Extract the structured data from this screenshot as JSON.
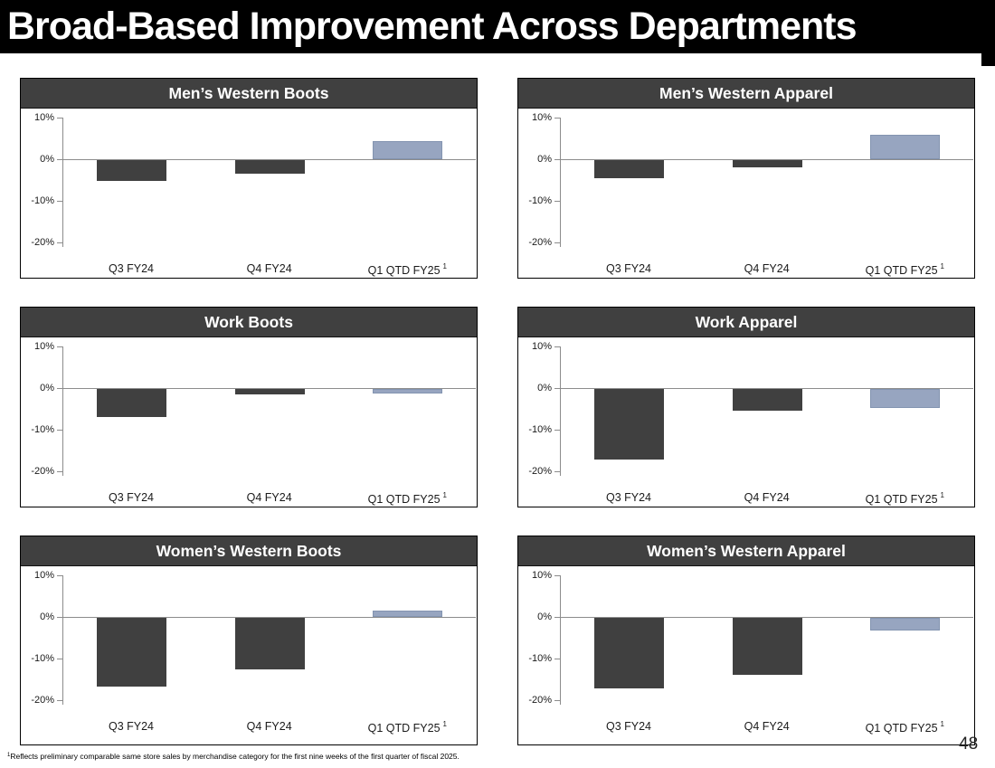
{
  "slide": {
    "title": "Broad-Based Improvement Across Departments",
    "page_number": "48",
    "footnote": {
      "marker": "1",
      "text": "Reflects preliminary comparable same store sales by merchandise category for the first nine weeks of the first quarter of fiscal 2025."
    }
  },
  "colors": {
    "header_bg": "#000000",
    "header_text": "#ffffff",
    "panel_header_bg": "#404040",
    "bar_dark": "#404040",
    "bar_accent": "#97A5C0",
    "bar_accent_border": "#8394B0",
    "axis_line": "#8C8C8C"
  },
  "axis": {
    "tick_labels": [
      "10%",
      "0%",
      "-10%",
      "-20%"
    ],
    "tick_values": [
      10,
      0,
      -10,
      -20
    ],
    "ymax": 10,
    "ymin": -20
  },
  "category_superscript": "1",
  "chart_data": [
    {
      "type": "bar",
      "title": "Men’s Western Boots",
      "categories": [
        "Q3 FY24",
        "Q4 FY24",
        "Q1 QTD FY25"
      ],
      "values": [
        -5.0,
        -3.2,
        4.4
      ],
      "bar_colors": [
        "dark",
        "dark",
        "accent"
      ],
      "ylabel": "",
      "xlabel": "",
      "ylim": [
        -20,
        10
      ],
      "grid": false,
      "legend": "none"
    },
    {
      "type": "bar",
      "title": "Men’s Western Apparel",
      "categories": [
        "Q3 FY24",
        "Q4 FY24",
        "Q1 QTD FY25"
      ],
      "values": [
        -4.3,
        -1.8,
        5.8
      ],
      "bar_colors": [
        "dark",
        "dark",
        "accent"
      ],
      "ylabel": "",
      "xlabel": "",
      "ylim": [
        -20,
        10
      ],
      "grid": false,
      "legend": "none"
    },
    {
      "type": "bar",
      "title": "Work Boots",
      "categories": [
        "Q3 FY24",
        "Q4 FY24",
        "Q1 QTD FY25"
      ],
      "values": [
        -6.8,
        -1.3,
        -1.0
      ],
      "bar_colors": [
        "dark",
        "dark",
        "accent"
      ],
      "ylabel": "",
      "xlabel": "",
      "ylim": [
        -20,
        10
      ],
      "grid": false,
      "legend": "none"
    },
    {
      "type": "bar",
      "title": "Work Apparel",
      "categories": [
        "Q3 FY24",
        "Q4 FY24",
        "Q1 QTD FY25"
      ],
      "values": [
        -16.9,
        -5.2,
        -4.5
      ],
      "bar_colors": [
        "dark",
        "dark",
        "accent"
      ],
      "ylabel": "",
      "xlabel": "",
      "ylim": [
        -20,
        10
      ],
      "grid": false,
      "legend": "none"
    },
    {
      "type": "bar",
      "title": "Women’s Western Boots",
      "categories": [
        "Q3 FY24",
        "Q4 FY24",
        "Q1 QTD FY25"
      ],
      "values": [
        -16.5,
        -12.3,
        1.6
      ],
      "bar_colors": [
        "dark",
        "dark",
        "accent"
      ],
      "ylabel": "",
      "xlabel": "",
      "ylim": [
        -20,
        10
      ],
      "grid": false,
      "legend": "none"
    },
    {
      "type": "bar",
      "title": "Women’s Western Apparel",
      "categories": [
        "Q3 FY24",
        "Q4 FY24",
        "Q1 QTD FY25"
      ],
      "values": [
        -17.0,
        -13.6,
        -3.1
      ],
      "bar_colors": [
        "dark",
        "dark",
        "accent"
      ],
      "ylabel": "",
      "xlabel": "",
      "ylim": [
        -20,
        10
      ],
      "grid": false,
      "legend": "none"
    }
  ]
}
